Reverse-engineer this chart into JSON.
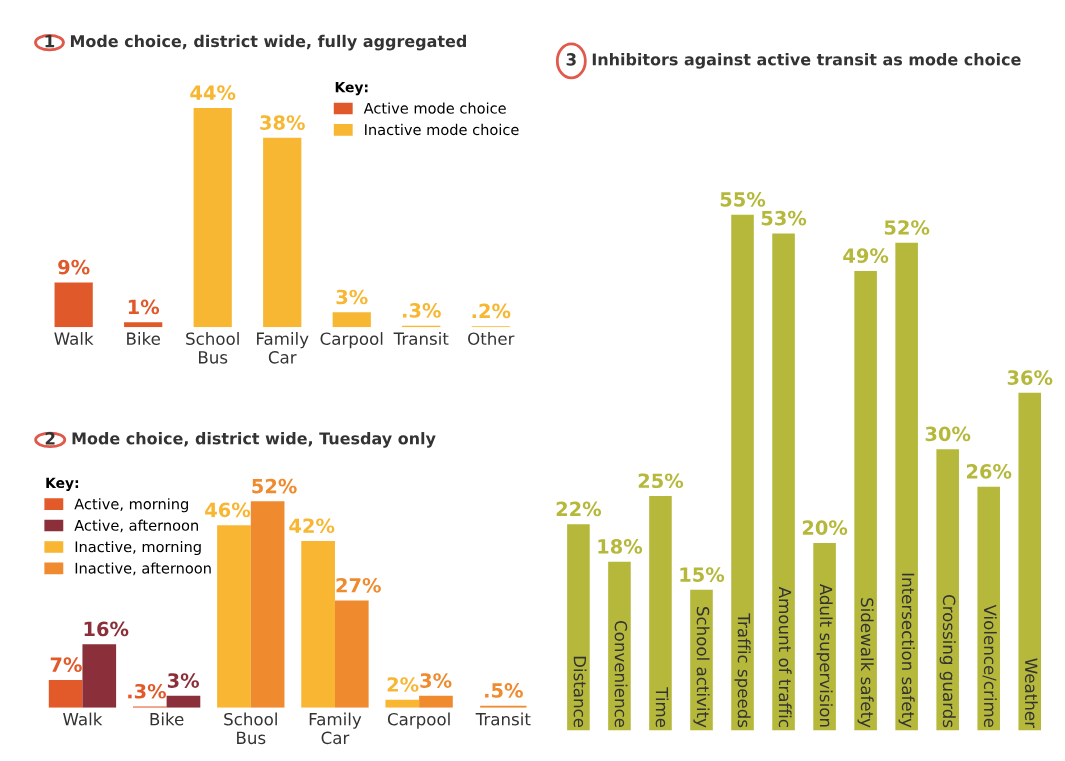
{
  "chart_data": [
    {
      "type": "bar",
      "title": "Mode choice, district wide, fully aggregated",
      "annotations": [
        "1"
      ],
      "legend_title": "Key:",
      "legend": "top right",
      "categories": [
        "Walk",
        "Bike",
        "School\nBus",
        "Family\nCar",
        "Carpool",
        "Transit",
        "Other"
      ],
      "series": [
        {
          "name": "Active mode choice",
          "color": "#e0592b",
          "values": [
            9,
            1,
            null,
            null,
            null,
            null,
            null
          ],
          "value_labels": [
            "9%",
            "1%",
            null,
            null,
            null,
            null,
            null
          ]
        },
        {
          "name": "Inactive mode choice",
          "color": "#f7b733",
          "values": [
            null,
            null,
            44,
            38,
            3,
            0.3,
            0.2
          ],
          "value_labels": [
            null,
            null,
            "44%",
            "38%",
            "3%",
            ".3%",
            ".2%"
          ]
        }
      ]
    },
    {
      "type": "bar",
      "title": "Mode choice, district wide, Tuesday only",
      "annotations": [
        "2"
      ],
      "legend_title": "Key:",
      "legend": "top left",
      "categories": [
        "Walk",
        "Bike",
        "School\nBus",
        "Family\nCar",
        "Carpool",
        "Transit"
      ],
      "series": [
        {
          "name": "Active, morning",
          "color": "#e35a2a",
          "values": [
            7,
            0.3,
            null,
            null,
            null,
            null
          ],
          "value_labels": [
            "7%",
            ".3%",
            null,
            null,
            null,
            null
          ]
        },
        {
          "name": "Active, afternoon",
          "color": "#8b2f3a",
          "values": [
            16,
            3,
            null,
            null,
            null,
            null
          ],
          "value_labels": [
            "16%",
            "3%",
            null,
            null,
            null,
            null
          ]
        },
        {
          "name": "Inactive, morning",
          "color": "#f8b632",
          "values": [
            null,
            null,
            46,
            42,
            2,
            null
          ],
          "value_labels": [
            null,
            null,
            "46%",
            "42%",
            "2%",
            null
          ]
        },
        {
          "name": "Inactive, afternoon",
          "color": "#ef8a2f",
          "values": [
            null,
            null,
            52,
            27,
            3,
            0.5
          ],
          "value_labels": [
            null,
            null,
            "52%",
            "27%",
            "3%",
            ".5%"
          ]
        }
      ]
    },
    {
      "type": "bar",
      "title": "Inhibitors against active transit as mode choice",
      "annotations": [
        "3"
      ],
      "categories": [
        "Distance",
        "Convenience",
        "Time",
        "School activity",
        "Traffic speeds",
        "Amount of traffic",
        "Adult supervision",
        "Sidewalk safety",
        "Intersection safety",
        "Crossing guards",
        "Violence/crime",
        "Weather"
      ],
      "series": [
        {
          "color": "#b5b83a",
          "values": [
            22,
            18,
            25,
            15,
            55,
            53,
            20,
            49,
            52,
            30,
            26,
            36
          ],
          "value_labels": [
            "22%",
            "18%",
            "25%",
            "15%",
            "55%",
            "53%",
            "20%",
            "49%",
            "52%",
            "30%",
            "26%",
            "36%"
          ]
        }
      ]
    }
  ]
}
